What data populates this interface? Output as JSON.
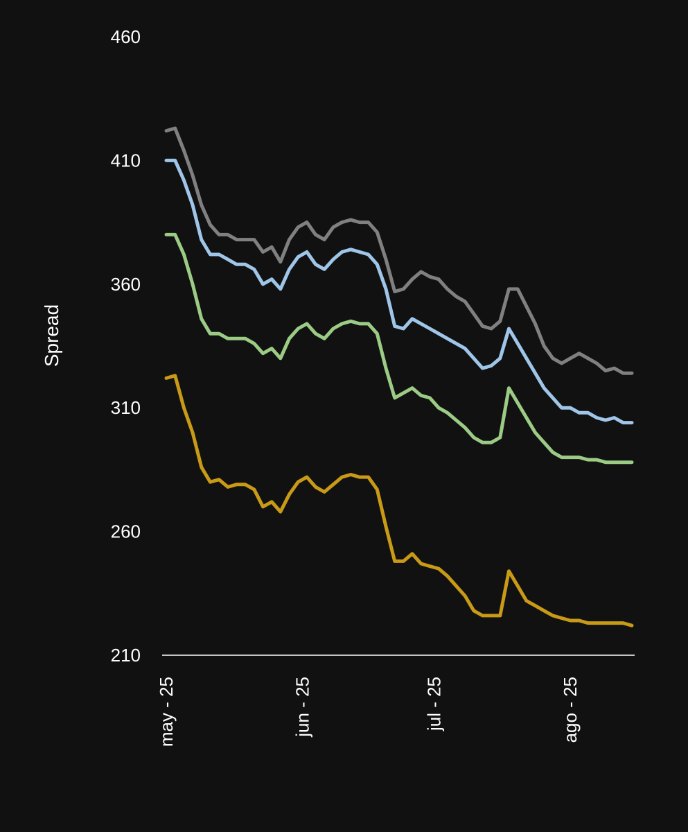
{
  "chart_data": {
    "type": "line",
    "title": "",
    "xlabel": "",
    "ylabel": "Spread",
    "ylim": [
      210,
      460
    ],
    "yticks": [
      "460",
      "410",
      "360",
      "310",
      "260",
      "210"
    ],
    "xticks": [
      "may - 25",
      "jun - 25",
      "jul - 25",
      "ago - 25"
    ],
    "xtick_dates": [
      "2025-05-01",
      "2025-06-01",
      "2025-07-01",
      "2025-08-01"
    ],
    "grid": false,
    "legend": "none",
    "x": [
      "2025-05-01",
      "2025-05-03",
      "2025-05-05",
      "2025-05-07",
      "2025-05-09",
      "2025-05-11",
      "2025-05-13",
      "2025-05-15",
      "2025-05-17",
      "2025-05-19",
      "2025-05-21",
      "2025-05-23",
      "2025-05-25",
      "2025-05-27",
      "2025-05-29",
      "2025-05-31",
      "2025-06-02",
      "2025-06-04",
      "2025-06-06",
      "2025-06-08",
      "2025-06-10",
      "2025-06-12",
      "2025-06-14",
      "2025-06-16",
      "2025-06-18",
      "2025-06-20",
      "2025-06-22",
      "2025-06-24",
      "2025-06-26",
      "2025-06-28",
      "2025-06-30",
      "2025-07-02",
      "2025-07-04",
      "2025-07-06",
      "2025-07-08",
      "2025-07-10",
      "2025-07-12",
      "2025-07-14",
      "2025-07-16",
      "2025-07-18",
      "2025-07-20",
      "2025-07-22",
      "2025-07-24",
      "2025-07-26",
      "2025-07-28",
      "2025-07-30",
      "2025-08-01",
      "2025-08-03",
      "2025-08-05",
      "2025-08-07",
      "2025-08-09",
      "2025-08-11",
      "2025-08-13",
      "2025-08-15"
    ],
    "series": [
      {
        "color": "#808080",
        "values": [
          422,
          423,
          414,
          404,
          392,
          384,
          380,
          380,
          378,
          378,
          378,
          373,
          375,
          369,
          378,
          383,
          385,
          380,
          378,
          383,
          385,
          386,
          385,
          385,
          381,
          370,
          357,
          358,
          362,
          365,
          363,
          362,
          358,
          355,
          353,
          348,
          343,
          342,
          345,
          358,
          358,
          351,
          344,
          335,
          330,
          328,
          330,
          332,
          330,
          328,
          325,
          326,
          324,
          324
        ]
      },
      {
        "color": "#9fc5e8",
        "values": [
          410,
          410,
          402,
          392,
          378,
          372,
          372,
          370,
          368,
          368,
          366,
          360,
          362,
          358,
          366,
          371,
          373,
          368,
          366,
          370,
          373,
          374,
          373,
          372,
          368,
          358,
          343,
          342,
          346,
          344,
          342,
          340,
          338,
          336,
          334,
          330,
          326,
          327,
          330,
          342,
          336,
          330,
          324,
          318,
          314,
          310,
          310,
          308,
          308,
          306,
          305,
          306,
          304,
          304
        ]
      },
      {
        "color": "#9bcb85",
        "values": [
          380,
          380,
          372,
          360,
          346,
          340,
          340,
          338,
          338,
          338,
          336,
          332,
          334,
          330,
          338,
          342,
          344,
          340,
          338,
          342,
          344,
          345,
          344,
          344,
          340,
          326,
          314,
          316,
          318,
          315,
          314,
          310,
          308,
          305,
          302,
          298,
          296,
          296,
          298,
          318,
          312,
          306,
          300,
          296,
          292,
          290,
          290,
          290,
          289,
          289,
          288,
          288,
          288,
          288
        ]
      },
      {
        "color": "#c89a16",
        "values": [
          322,
          323,
          310,
          300,
          286,
          280,
          281,
          278,
          279,
          279,
          277,
          270,
          272,
          268,
          275,
          280,
          282,
          278,
          276,
          279,
          282,
          283,
          282,
          282,
          277,
          262,
          248,
          248,
          251,
          247,
          246,
          245,
          242,
          238,
          234,
          228,
          226,
          226,
          226,
          244,
          238,
          232,
          230,
          228,
          226,
          225,
          224,
          224,
          223,
          223,
          223,
          223,
          223,
          222
        ]
      }
    ]
  }
}
